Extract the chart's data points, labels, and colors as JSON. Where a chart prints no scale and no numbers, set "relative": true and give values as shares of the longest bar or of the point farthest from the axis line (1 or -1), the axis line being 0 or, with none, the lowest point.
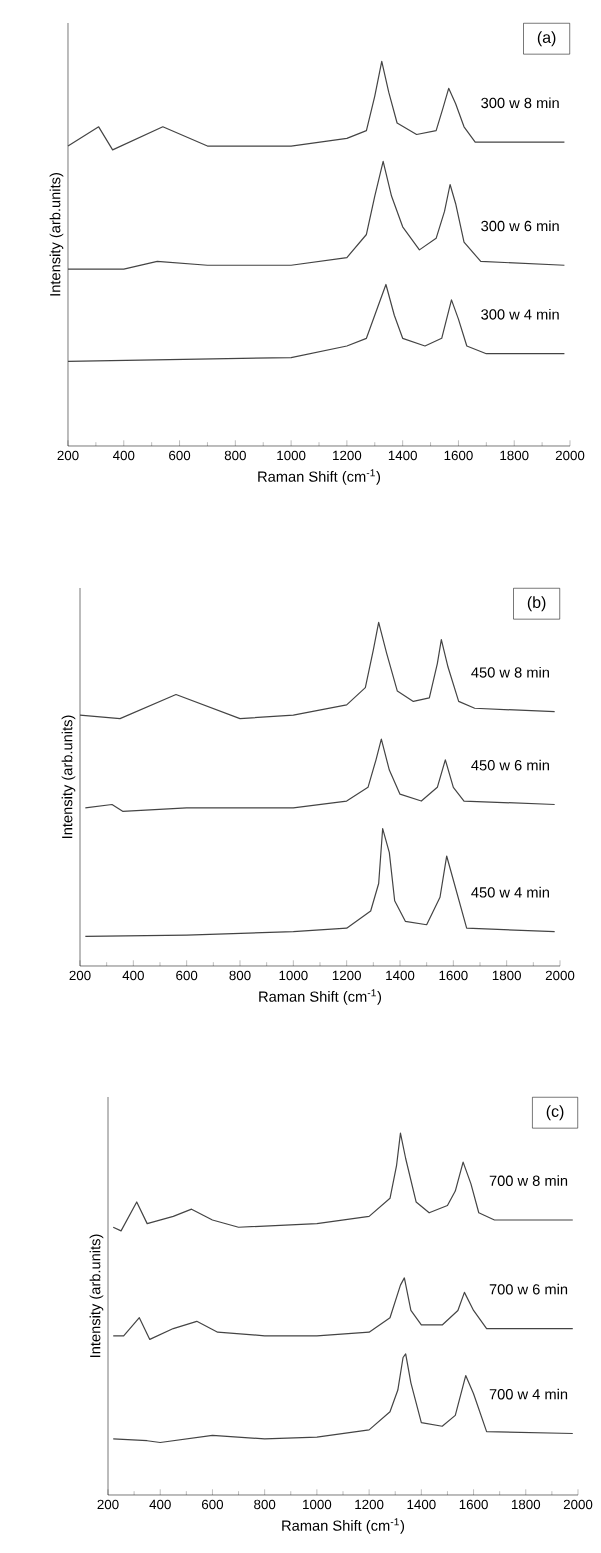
{
  "chart_data": [
    {
      "type": "line",
      "relative": true,
      "xlabel": "Raman Shift (cm$^{-1}$)",
      "ylabel": "Intensity (arb.units)",
      "xlim": [
        200,
        2000
      ],
      "xticks": [
        200,
        400,
        600,
        800,
        1000,
        1200,
        1400,
        1600,
        1800,
        2000
      ],
      "annotations": [
        "(a)"
      ],
      "line_style": "solid",
      "marker": "none",
      "series": [
        {
          "name": "300 w 8 min",
          "color": "#444444",
          "x": [
            200,
            310,
            360,
            540,
            700,
            1000,
            1200,
            1270,
            1300,
            1325,
            1350,
            1380,
            1450,
            1520,
            1545,
            1565,
            1590,
            1620,
            1660,
            1800,
            1980
          ],
          "values": [
            0.78,
            0.83,
            0.77,
            0.83,
            0.78,
            0.78,
            0.8,
            0.82,
            0.91,
            1.0,
            0.92,
            0.84,
            0.81,
            0.82,
            0.88,
            0.93,
            0.89,
            0.83,
            0.79,
            0.79,
            0.79
          ]
        },
        {
          "name": "300 w 6 min",
          "color": "#444444",
          "x": [
            200,
            400,
            520,
            700,
            1000,
            1200,
            1270,
            1300,
            1330,
            1360,
            1400,
            1460,
            1520,
            1550,
            1570,
            1590,
            1620,
            1680,
            1980
          ],
          "values": [
            0.46,
            0.46,
            0.48,
            0.47,
            0.47,
            0.49,
            0.55,
            0.65,
            0.74,
            0.65,
            0.57,
            0.51,
            0.54,
            0.61,
            0.68,
            0.63,
            0.53,
            0.48,
            0.47
          ]
        },
        {
          "name": "300 w 4 min",
          "color": "#444444",
          "x": [
            200,
            1000,
            1200,
            1270,
            1310,
            1340,
            1370,
            1400,
            1480,
            1540,
            1575,
            1600,
            1630,
            1700,
            1980
          ],
          "values": [
            0.22,
            0.23,
            0.26,
            0.28,
            0.36,
            0.42,
            0.34,
            0.28,
            0.26,
            0.28,
            0.38,
            0.33,
            0.26,
            0.24,
            0.24
          ]
        }
      ]
    },
    {
      "type": "line",
      "relative": true,
      "xlabel": "Raman Shift (cm$^{-1}$)",
      "ylabel": "Intensity (arb.units)",
      "xlim": [
        200,
        2000
      ],
      "xticks": [
        200,
        400,
        600,
        800,
        1000,
        1200,
        1400,
        1600,
        1800,
        2000
      ],
      "annotations": [
        "(b)"
      ],
      "line_style": "solid",
      "marker": "none",
      "series": [
        {
          "name": "450 w 8 min",
          "color": "#444444",
          "x": [
            200,
            350,
            560,
            800,
            1000,
            1200,
            1270,
            1300,
            1320,
            1350,
            1390,
            1450,
            1510,
            1540,
            1555,
            1580,
            1620,
            1680,
            1980
          ],
          "values": [
            0.73,
            0.72,
            0.79,
            0.72,
            0.73,
            0.76,
            0.81,
            0.92,
            1.0,
            0.91,
            0.8,
            0.77,
            0.78,
            0.88,
            0.95,
            0.87,
            0.77,
            0.75,
            0.74
          ]
        },
        {
          "name": "450 w 6 min",
          "color": "#444444",
          "x": [
            220,
            320,
            360,
            600,
            1000,
            1200,
            1280,
            1310,
            1330,
            1360,
            1400,
            1480,
            1540,
            1570,
            1600,
            1640,
            1980
          ],
          "values": [
            0.46,
            0.47,
            0.45,
            0.46,
            0.46,
            0.48,
            0.52,
            0.6,
            0.66,
            0.57,
            0.5,
            0.48,
            0.52,
            0.6,
            0.52,
            0.48,
            0.47
          ]
        },
        {
          "name": "450 w 4 min",
          "color": "#444444",
          "x": [
            220,
            600,
            1000,
            1200,
            1290,
            1320,
            1335,
            1360,
            1380,
            1420,
            1500,
            1550,
            1575,
            1600,
            1650,
            1980
          ],
          "values": [
            0.086,
            0.09,
            0.1,
            0.11,
            0.16,
            0.24,
            0.4,
            0.33,
            0.19,
            0.13,
            0.12,
            0.2,
            0.32,
            0.25,
            0.11,
            0.1
          ]
        }
      ]
    },
    {
      "type": "line",
      "relative": true,
      "xlabel": "Raman Shift (cm$^{-1}$)",
      "ylabel": "Intensity (arb.units)",
      "xlim": [
        200,
        2000
      ],
      "xticks": [
        200,
        400,
        600,
        800,
        1000,
        1200,
        1400,
        1600,
        1800,
        2000
      ],
      "annotations": [
        "(c)"
      ],
      "line_style": "solid",
      "marker": "none",
      "series": [
        {
          "name": "700 w 8 min",
          "color": "#444444",
          "x": [
            220,
            250,
            310,
            350,
            450,
            520,
            600,
            700,
            1000,
            1200,
            1280,
            1305,
            1320,
            1340,
            1380,
            1430,
            1500,
            1530,
            1560,
            1590,
            1620,
            1680,
            1980
          ],
          "values": [
            0.74,
            0.73,
            0.81,
            0.75,
            0.77,
            0.79,
            0.76,
            0.74,
            0.75,
            0.77,
            0.82,
            0.91,
            1.0,
            0.93,
            0.81,
            0.78,
            0.8,
            0.84,
            0.92,
            0.86,
            0.78,
            0.76,
            0.76
          ]
        },
        {
          "name": "700 w 6 min",
          "color": "#444444",
          "x": [
            220,
            260,
            320,
            360,
            450,
            540,
            620,
            800,
            1000,
            1200,
            1280,
            1320,
            1335,
            1360,
            1400,
            1480,
            1540,
            1565,
            1600,
            1650,
            1980
          ],
          "values": [
            0.44,
            0.44,
            0.49,
            0.43,
            0.46,
            0.48,
            0.45,
            0.44,
            0.44,
            0.45,
            0.49,
            0.58,
            0.6,
            0.51,
            0.47,
            0.47,
            0.51,
            0.56,
            0.51,
            0.46,
            0.46
          ]
        },
        {
          "name": "700 w 4 min",
          "color": "#444444",
          "x": [
            220,
            350,
            400,
            600,
            800,
            1000,
            1200,
            1280,
            1310,
            1330,
            1340,
            1360,
            1400,
            1480,
            1530,
            1570,
            1600,
            1650,
            1980
          ],
          "values": [
            0.155,
            0.15,
            0.145,
            0.165,
            0.155,
            0.16,
            0.18,
            0.23,
            0.29,
            0.38,
            0.39,
            0.31,
            0.2,
            0.19,
            0.22,
            0.33,
            0.28,
            0.175,
            0.17
          ]
        }
      ]
    }
  ]
}
